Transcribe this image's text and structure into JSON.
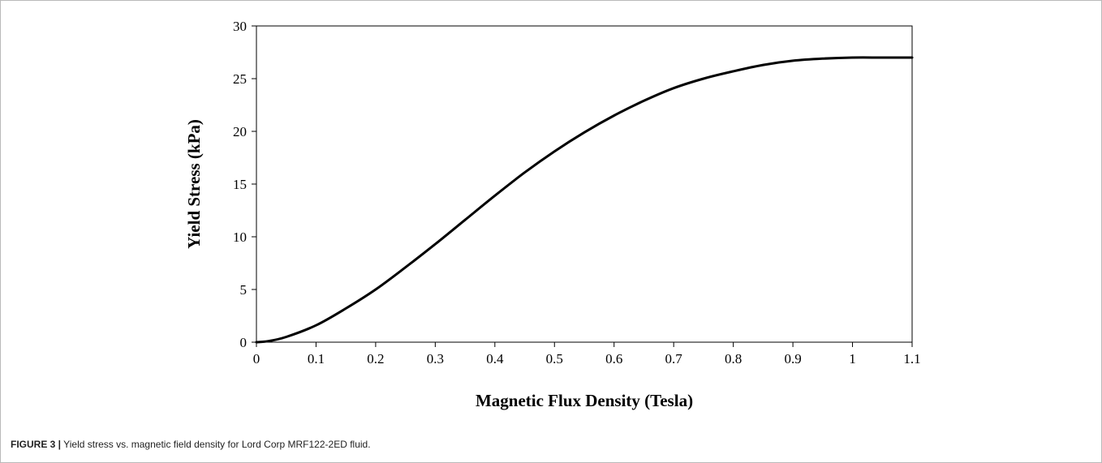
{
  "caption": {
    "label": "FIGURE 3 |",
    "text": "Yield stress vs. magnetic field density for Lord Corp MRF122-2ED fluid."
  },
  "chart_data": {
    "type": "line",
    "xlabel": "Magnetic Flux Density (Tesla)",
    "ylabel": "Yield Stress (kPa)",
    "xlim": [
      0,
      1.1
    ],
    "ylim": [
      0,
      30
    ],
    "xticks": [
      "0",
      "0.1",
      "0.2",
      "0.3",
      "0.4",
      "0.5",
      "0.6",
      "0.7",
      "0.8",
      "0.9",
      "1",
      "1.1"
    ],
    "yticks": [
      "0",
      "5",
      "10",
      "15",
      "20",
      "25",
      "30"
    ],
    "grid": false,
    "legend": "none",
    "line_color": "#000000",
    "series": [
      {
        "x": [
          0,
          0.02,
          0.05,
          0.1,
          0.15,
          0.2,
          0.25,
          0.3,
          0.35,
          0.4,
          0.45,
          0.5,
          0.55,
          0.6,
          0.65,
          0.7,
          0.75,
          0.8,
          0.85,
          0.9,
          0.95,
          1.0,
          1.05,
          1.1
        ],
        "y": [
          0,
          0.1,
          0.5,
          1.6,
          3.2,
          5.0,
          7.1,
          9.3,
          11.6,
          13.9,
          16.1,
          18.1,
          19.9,
          21.5,
          22.9,
          24.1,
          25.0,
          25.7,
          26.3,
          26.7,
          26.9,
          27.0,
          27.0,
          27.0
        ]
      }
    ]
  }
}
